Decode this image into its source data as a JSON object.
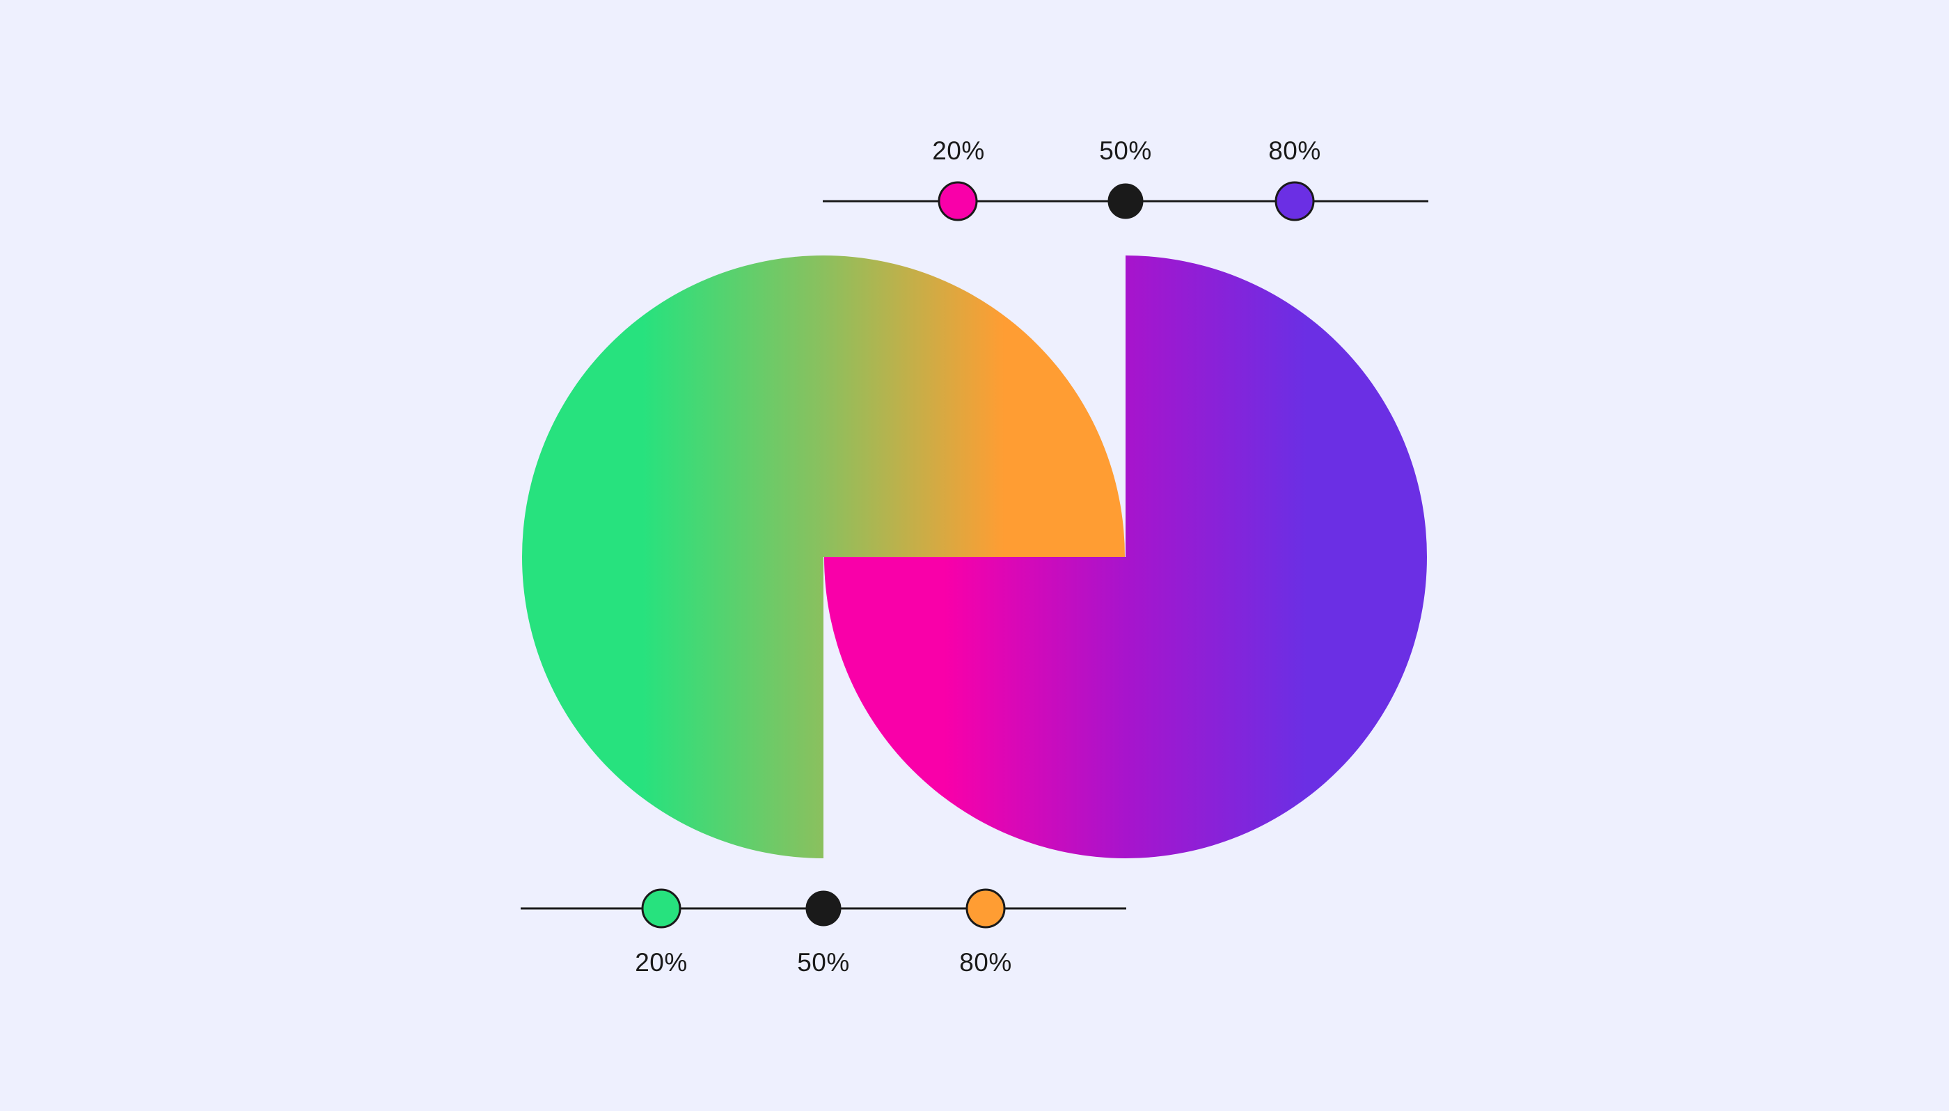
{
  "background_color": "#eef0fe",
  "line_color": "#1a1a1a",
  "shapes": {
    "left": {
      "description_color_stops": [
        {
          "offset": "20%",
          "color": "#27e27e"
        },
        {
          "offset": "50%",
          "color": "#8bc05e"
        },
        {
          "offset": "80%",
          "color": "#ff9d33"
        }
      ]
    },
    "right": {
      "description_color_stops": [
        {
          "offset": "20%",
          "color": "#f900a9"
        },
        {
          "offset": "50%",
          "color": "#a814cc"
        },
        {
          "offset": "80%",
          "color": "#6b2fe4"
        }
      ]
    }
  },
  "top_slider": {
    "stops": [
      {
        "label": "20%",
        "position": 0.2,
        "color": "#f900a9"
      },
      {
        "label": "50%",
        "position": 0.5,
        "color": "#1a1a1a"
      },
      {
        "label": "80%",
        "position": 0.8,
        "color": "#6b2fe4"
      }
    ]
  },
  "bottom_slider": {
    "stops": [
      {
        "label": "20%",
        "position": 0.2,
        "color": "#27e27e"
      },
      {
        "label": "50%",
        "position": 0.5,
        "color": "#1a1a1a"
      },
      {
        "label": "80%",
        "position": 0.8,
        "color": "#ff9d33"
      }
    ]
  }
}
